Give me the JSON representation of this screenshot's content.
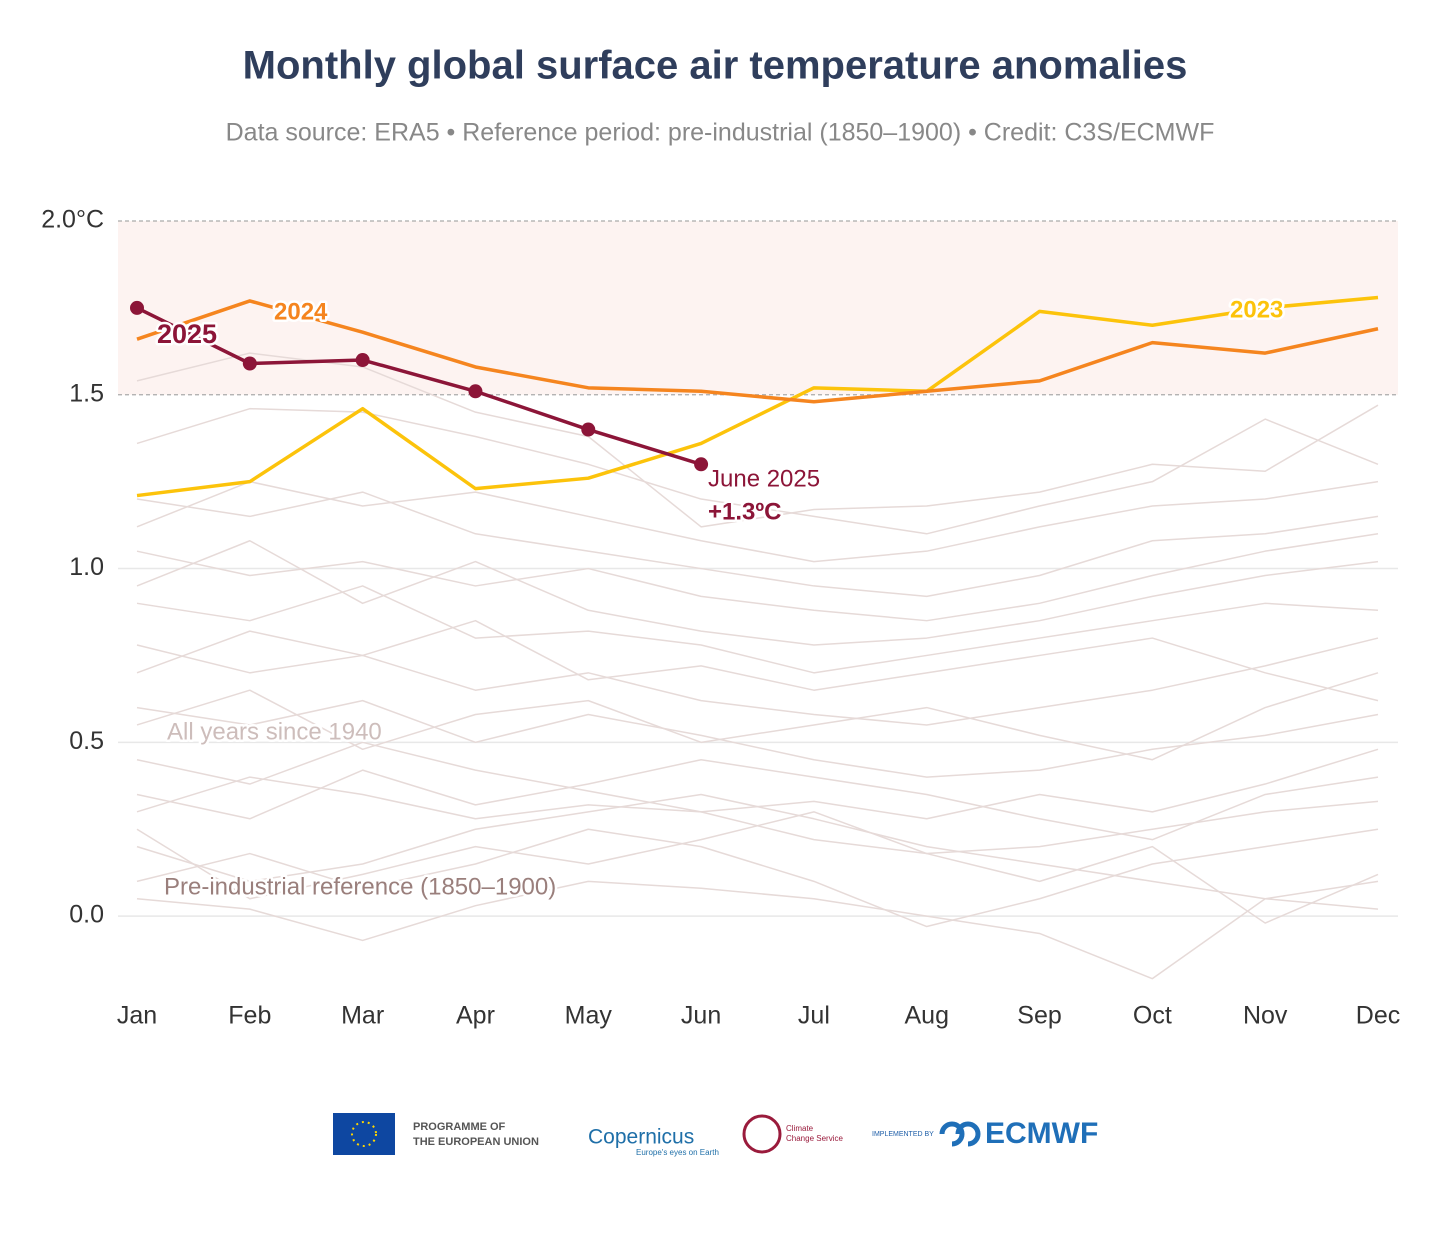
{
  "chart_data": {
    "type": "line",
    "title": "Monthly global surface air temperature anomalies",
    "subtitle": "Data source: ERA5 • Reference period: pre-industrial (1850–1900) • Credit: C3S/ECMWF",
    "categories": [
      "Jan",
      "Feb",
      "Mar",
      "Apr",
      "May",
      "Jun",
      "Jul",
      "Aug",
      "Sep",
      "Oct",
      "Nov",
      "Dec"
    ],
    "ylim": [
      -0.25,
      2.0
    ],
    "yticks": [
      {
        "value": 0,
        "label": "0.0"
      },
      0.5,
      {
        "value": 1,
        "label": "1.0"
      },
      1.5,
      {
        "value": 2,
        "label": "2.0°C"
      }
    ],
    "shaded_range": [
      1.5,
      2.0
    ],
    "shaded_color": "#fdf3f1",
    "background_series": {
      "label": "All years since 1940",
      "color": "#e6dad8",
      "values": [
        [
          0.05,
          0.02,
          -0.07,
          0.03,
          0.1,
          0.08,
          0.05,
          0.0,
          -0.05,
          -0.18,
          0.05,
          0.1
        ],
        [
          0.2,
          0.1,
          0.15,
          0.25,
          0.3,
          0.35,
          0.28,
          0.2,
          0.15,
          0.1,
          0.05,
          0.02
        ],
        [
          0.3,
          0.4,
          0.35,
          0.28,
          0.32,
          0.3,
          0.22,
          0.18,
          0.2,
          0.25,
          0.3,
          0.33
        ],
        [
          0.45,
          0.38,
          0.5,
          0.42,
          0.36,
          0.3,
          0.33,
          0.28,
          0.35,
          0.3,
          0.38,
          0.48
        ],
        [
          0.6,
          0.55,
          0.62,
          0.5,
          0.58,
          0.52,
          0.45,
          0.4,
          0.42,
          0.48,
          0.52,
          0.58
        ],
        [
          0.78,
          0.7,
          0.75,
          0.65,
          0.7,
          0.62,
          0.58,
          0.55,
          0.6,
          0.65,
          0.72,
          0.8
        ],
        [
          0.9,
          0.85,
          0.95,
          0.8,
          0.82,
          0.78,
          0.7,
          0.75,
          0.8,
          0.85,
          0.9,
          0.88
        ],
        [
          1.05,
          0.98,
          1.02,
          0.95,
          1.0,
          0.92,
          0.88,
          0.85,
          0.9,
          0.98,
          1.05,
          1.1
        ],
        [
          1.2,
          1.15,
          1.22,
          1.1,
          1.05,
          1.0,
          0.95,
          0.92,
          0.98,
          1.08,
          1.1,
          1.15
        ],
        [
          1.36,
          1.46,
          1.45,
          1.38,
          1.3,
          1.2,
          1.15,
          1.1,
          1.18,
          1.25,
          1.43,
          1.3
        ],
        [
          1.54,
          1.62,
          1.58,
          1.45,
          1.38,
          1.12,
          1.17,
          1.18,
          1.22,
          1.3,
          1.28,
          1.47
        ],
        [
          0.25,
          0.05,
          0.12,
          0.2,
          0.15,
          0.22,
          0.3,
          0.18,
          0.1,
          0.2,
          -0.02,
          0.12
        ],
        [
          0.1,
          0.18,
          0.08,
          0.15,
          0.25,
          0.2,
          0.1,
          -0.03,
          0.05,
          0.15,
          0.2,
          0.25
        ],
        [
          0.35,
          0.28,
          0.42,
          0.32,
          0.38,
          0.45,
          0.4,
          0.35,
          0.28,
          0.22,
          0.35,
          0.4
        ],
        [
          0.55,
          0.65,
          0.48,
          0.58,
          0.62,
          0.5,
          0.55,
          0.6,
          0.52,
          0.45,
          0.6,
          0.7
        ],
        [
          0.7,
          0.82,
          0.75,
          0.85,
          0.68,
          0.72,
          0.65,
          0.7,
          0.75,
          0.8,
          0.7,
          0.62
        ],
        [
          0.95,
          1.08,
          0.9,
          1.02,
          0.88,
          0.82,
          0.78,
          0.8,
          0.85,
          0.92,
          0.98,
          1.02
        ],
        [
          1.12,
          1.25,
          1.18,
          1.22,
          1.15,
          1.08,
          1.02,
          1.05,
          1.12,
          1.18,
          1.2,
          1.25
        ]
      ]
    },
    "series": [
      {
        "name": "2023",
        "color": "#fcc30b",
        "values": [
          1.21,
          1.25,
          1.46,
          1.23,
          1.26,
          1.36,
          1.52,
          1.51,
          1.74,
          1.7,
          1.75,
          1.78
        ]
      },
      {
        "name": "2024",
        "color": "#f5851f",
        "values": [
          1.66,
          1.77,
          1.68,
          1.58,
          1.52,
          1.51,
          1.48,
          1.51,
          1.54,
          1.65,
          1.62,
          1.69
        ]
      },
      {
        "name": "2025",
        "color": "#8c1538",
        "markers": true,
        "values": [
          1.75,
          1.59,
          1.6,
          1.51,
          1.4,
          1.3,
          null,
          null,
          null,
          null,
          null,
          null
        ]
      }
    ],
    "annotations": {
      "latest_label": "June 2025",
      "latest_value": "+1.3ºC",
      "reference": "Pre-industrial reference (1850–1900)"
    },
    "footer": {
      "eu": [
        "PROGRAMME OF",
        "THE EUROPEAN UNION"
      ],
      "copernicus": "Copernicus",
      "copernicus_tag": "Europe's eyes on Earth",
      "c3s": [
        "Climate",
        "Change Service"
      ],
      "implemented": "IMPLEMENTED BY",
      "ecmwf": "ECMWF"
    }
  }
}
